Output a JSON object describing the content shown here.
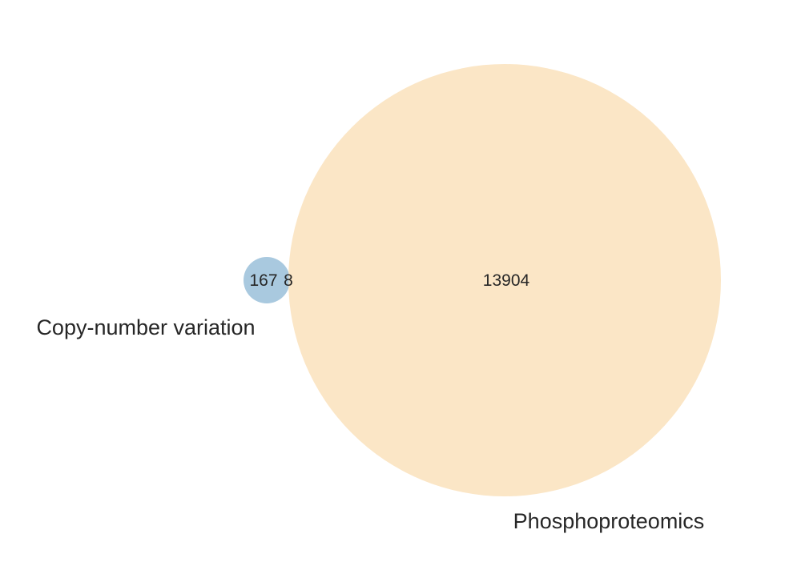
{
  "diagram": {
    "type": "venn2",
    "sets": [
      {
        "label": "Copy-number variation",
        "color": "#a9c9df"
      },
      {
        "label": "Phosphoproteomics",
        "color": "#fbe6c6"
      }
    ],
    "regions": {
      "only_a": "167",
      "intersection": "8",
      "only_b": "13904"
    }
  }
}
